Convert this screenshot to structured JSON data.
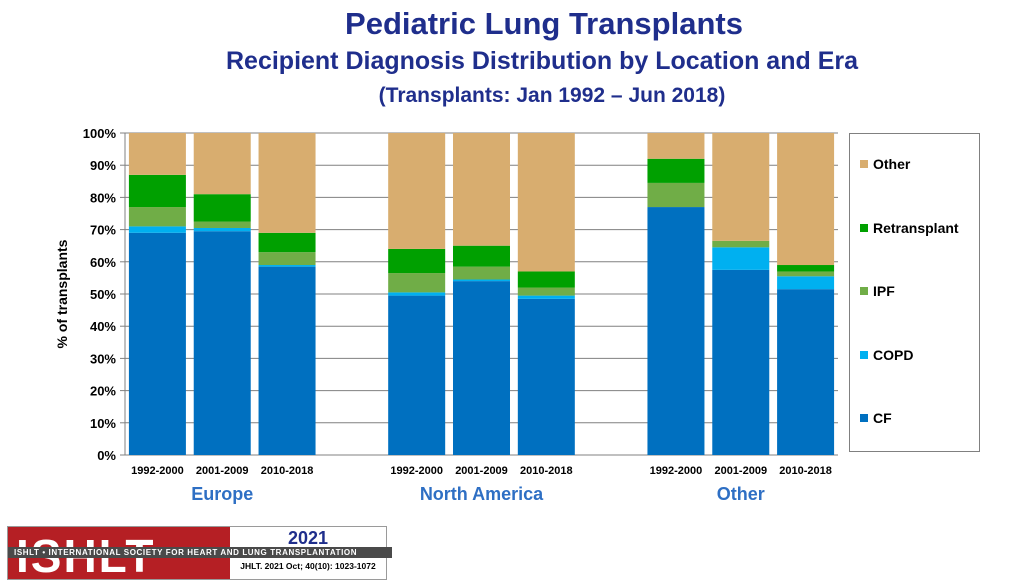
{
  "header": {
    "title": "Pediatric Lung Transplants",
    "subtitle": "Recipient Diagnosis Distribution by Location and Era",
    "period": "(Transplants: Jan 1992 – Jun 2018)"
  },
  "chart_data": {
    "type": "bar",
    "stacked": true,
    "ylabel": "% of transplants",
    "ylim": [
      0,
      100
    ],
    "yticks": [
      "0%",
      "10%",
      "20%",
      "30%",
      "40%",
      "50%",
      "60%",
      "70%",
      "80%",
      "90%",
      "100%"
    ],
    "groups": [
      {
        "name": "Europe",
        "categories": [
          "1992-2000",
          "2001-2009",
          "2010-2018"
        ]
      },
      {
        "name": "North America",
        "categories": [
          "1992-2000",
          "2001-2009",
          "2010-2018"
        ]
      },
      {
        "name": "Other",
        "categories": [
          "1992-2000",
          "2001-2009",
          "2010-2018"
        ]
      }
    ],
    "series": [
      {
        "name": "CF",
        "color": "#0070c0",
        "values": [
          69,
          69.5,
          58.5,
          49.5,
          54,
          48.5,
          77,
          57.5,
          51.5
        ]
      },
      {
        "name": "COPD",
        "color": "#00b0f0",
        "values": [
          2,
          1,
          0.5,
          1,
          0.5,
          1,
          0,
          7,
          4
        ]
      },
      {
        "name": "IPF",
        "color": "#70ad47",
        "values": [
          6,
          2,
          4,
          6,
          4,
          2.5,
          7.5,
          2,
          1.5
        ]
      },
      {
        "name": "Retransplant",
        "color": "#00a000",
        "values": [
          10,
          8.5,
          6,
          7.5,
          6.5,
          5,
          7.5,
          0,
          2
        ]
      },
      {
        "name": "Other",
        "color": "#d8ad6f",
        "values": [
          13,
          19,
          31,
          36,
          35,
          43,
          8,
          33.5,
          41
        ]
      }
    ],
    "legend_order": [
      "Other",
      "Retransplant",
      "IPF",
      "COPD",
      "CF"
    ],
    "legend_position": "right"
  },
  "footer": {
    "logo_text": "ISHLT",
    "logo_band": "ISHLT • INTERNATIONAL SOCIETY FOR HEART AND LUNG TRANSPLANTATION",
    "year": "2021",
    "citation": "JHLT. 2021 Oct; 40(10): 1023-1072"
  }
}
